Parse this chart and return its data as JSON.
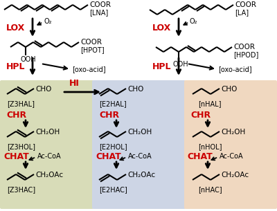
{
  "fig_width": 4.0,
  "fig_height": 3.05,
  "dpi": 100,
  "bg_color": "#ffffff",
  "red_color": "#cc0000",
  "black_color": "#000000",
  "box1_color": "#d8dcb8",
  "box2_color": "#cdd5e5",
  "box3_color": "#f0d8c0",
  "labels": {
    "LNA": "[LNA]",
    "LA": "[LA]",
    "LOX": "LOX",
    "O2": "O₂",
    "HPOT": "[HPOT]",
    "HPOD": "[HPOD]",
    "OOH": "OOH",
    "HPL": "HPL",
    "oxoacid": "[oxo-acid]",
    "HI": "HI",
    "Z3HAL": "[Z3HAL]",
    "E2HAL": "[E2HAL]",
    "nHAL": "[nHAL]",
    "CHR": "CHR",
    "Z3HOL": "[Z3HOL]",
    "E2HOL": "[E2HOL]",
    "nHOL": "[nHOL]",
    "CHAT": "CHAT",
    "AcCoA": "Ac-CoA",
    "Z3HAC": "[Z3HAC]",
    "E2HAC": "[E2HAC]",
    "nHAC": "[nHAC]",
    "CHO": "CHO",
    "CH2OH": "CH₂OH",
    "CH2OAc": "CH₂OAc",
    "COOR": "COOR"
  }
}
